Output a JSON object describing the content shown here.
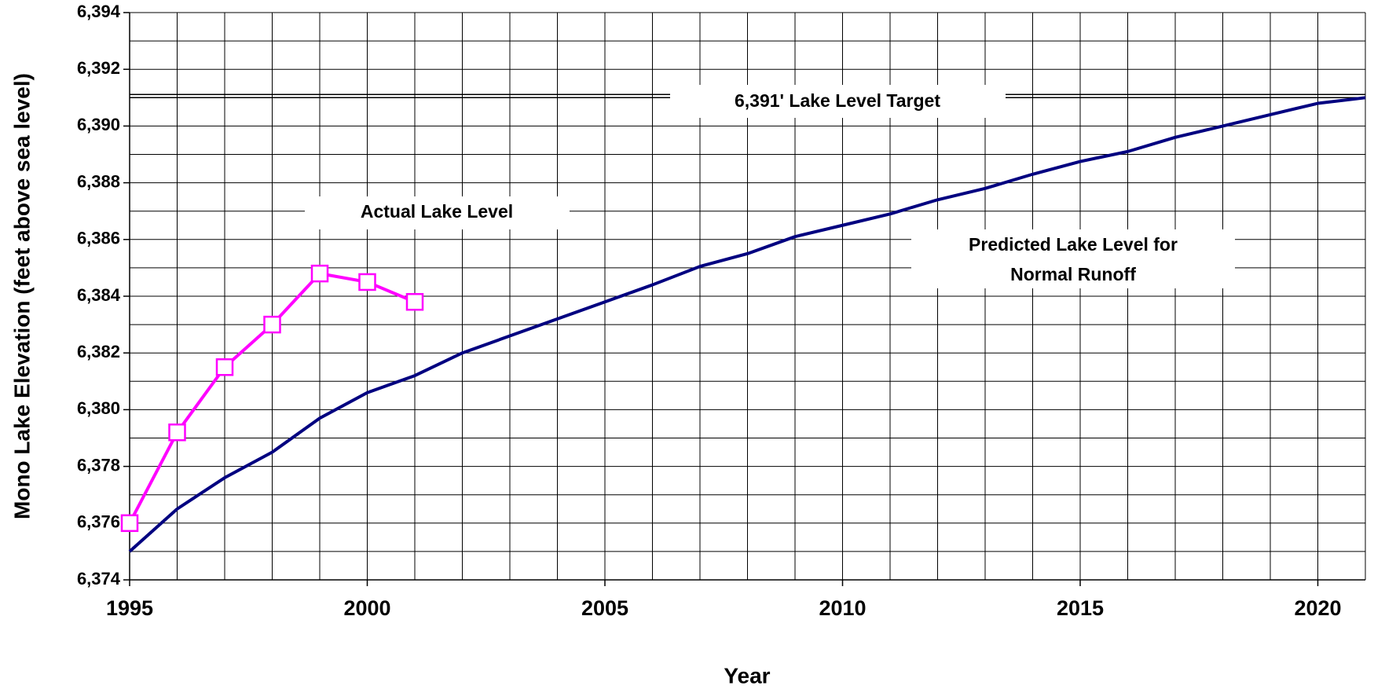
{
  "chart_data": {
    "type": "line",
    "x_label": "Year",
    "y_label": "Mono Lake Elevation (feet above sea level)",
    "xlim": [
      1995,
      2021
    ],
    "ylim": [
      6374,
      6394
    ],
    "xticks": [
      1995,
      2000,
      2005,
      2010,
      2015,
      2020
    ],
    "yticks": [
      {
        "value": 6374,
        "label": "6,374"
      },
      {
        "value": 6376,
        "label": "6,376"
      },
      {
        "value": 6378,
        "label": "6,378"
      },
      {
        "value": 6380,
        "label": "6,380"
      },
      {
        "value": 6382,
        "label": "6,382"
      },
      {
        "value": 6384,
        "label": "6,384"
      },
      {
        "value": 6386,
        "label": "6,386"
      },
      {
        "value": 6388,
        "label": "6,388"
      },
      {
        "value": 6390,
        "label": "6,390"
      },
      {
        "value": 6392,
        "label": "6,392"
      },
      {
        "value": 6394,
        "label": "6,394"
      }
    ],
    "xgrid": [
      1995,
      1996,
      1997,
      1998,
      1999,
      2000,
      2001,
      2002,
      2003,
      2004,
      2005,
      2006,
      2007,
      2008,
      2009,
      2010,
      2011,
      2012,
      2013,
      2014,
      2015,
      2016,
      2017,
      2018,
      2019,
      2020,
      2021
    ],
    "ygrid": [
      6374,
      6375,
      6376,
      6377,
      6378,
      6379,
      6380,
      6381,
      6382,
      6383,
      6384,
      6385,
      6386,
      6387,
      6388,
      6389,
      6390,
      6391,
      6392,
      6393,
      6394
    ],
    "grid": true,
    "target": {
      "value": 6391,
      "label": "6,391' Lake Level Target",
      "color": "#000000"
    },
    "series": [
      {
        "name": "Actual Lake Level",
        "color": "#ff00ff",
        "marker": "square",
        "x": [
          1995,
          1996,
          1997,
          1998,
          1999,
          2000,
          2001
        ],
        "values": [
          6376.0,
          6379.2,
          6381.5,
          6383.0,
          6384.8,
          6384.5,
          6383.8
        ]
      },
      {
        "name": [
          "Predicted Lake Level for",
          "Normal Runoff"
        ],
        "color": "#000080",
        "x": [
          1995,
          1996,
          1997,
          1998,
          1999,
          2000,
          2001,
          2002,
          2003,
          2004,
          2005,
          2006,
          2007,
          2008,
          2009,
          2010,
          2011,
          2012,
          2013,
          2014,
          2015,
          2016,
          2017,
          2018,
          2019,
          2020,
          2021
        ],
        "values": [
          6375.0,
          6376.5,
          6377.6,
          6378.5,
          6379.7,
          6380.6,
          6381.2,
          6382.0,
          6382.6,
          6383.2,
          6383.8,
          6384.4,
          6385.05,
          6385.5,
          6386.1,
          6386.5,
          6386.9,
          6387.4,
          6387.8,
          6388.3,
          6388.75,
          6389.1,
          6389.6,
          6390.0,
          6390.4,
          6390.8,
          6391.0
        ]
      }
    ]
  }
}
